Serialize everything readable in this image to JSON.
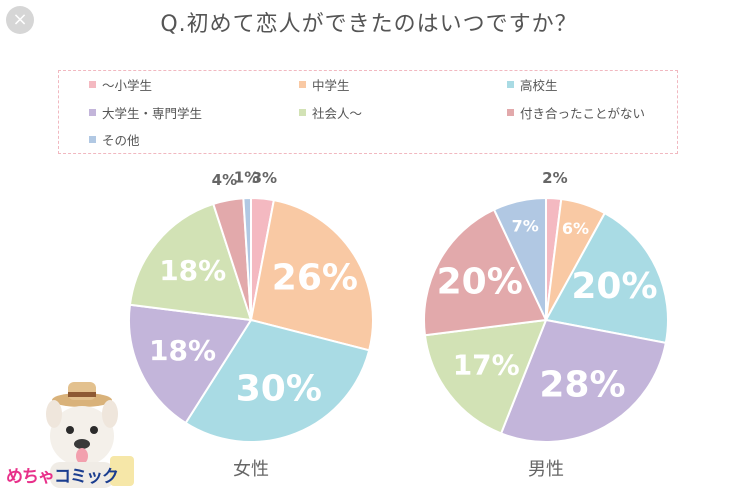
{
  "title": "Q.初めて恋人ができたのはいつですか？",
  "close_icon": "×",
  "logo": {
    "text_pre": "めちゃ",
    "text_post": "コミック"
  },
  "legend": [
    {
      "label": "～小学生",
      "color": "#f4b9c1"
    },
    {
      "label": "中学生",
      "color": "#f9c9a4"
    },
    {
      "label": "高校生",
      "color": "#a9dbe4"
    },
    {
      "label": "大学生・専門学生",
      "color": "#c3b5da"
    },
    {
      "label": "社会人～",
      "color": "#d2e2b5"
    },
    {
      "label": "付き合ったことがない",
      "color": "#e2a9ab"
    },
    {
      "label": "その他",
      "color": "#b1c8e3"
    }
  ],
  "chart_data": [
    {
      "type": "pie",
      "title": "女性",
      "slices": [
        {
          "category": "～小学生",
          "value": 3,
          "label": "3%"
        },
        {
          "category": "中学生",
          "value": 26,
          "label": "26%"
        },
        {
          "category": "高校生",
          "value": 30,
          "label": "30%"
        },
        {
          "category": "大学生・専門学生",
          "value": 18,
          "label": "18%"
        },
        {
          "category": "社会人～",
          "value": 18,
          "label": "18%"
        },
        {
          "category": "付き合ったことがない",
          "value": 4,
          "label": "4%"
        },
        {
          "category": "その他",
          "value": 1,
          "label": "1%"
        }
      ]
    },
    {
      "type": "pie",
      "title": "男性",
      "slices": [
        {
          "category": "～小学生",
          "value": 2,
          "label": "2%"
        },
        {
          "category": "中学生",
          "value": 6,
          "label": "6%"
        },
        {
          "category": "高校生",
          "value": 20,
          "label": "20%"
        },
        {
          "category": "大学生・専門学生",
          "value": 28,
          "label": "28%"
        },
        {
          "category": "社会人～",
          "value": 17,
          "label": "17%"
        },
        {
          "category": "付き合ったことがない",
          "value": 20,
          "label": "20%"
        },
        {
          "category": "その他",
          "value": 7,
          "label": "7%"
        }
      ]
    }
  ]
}
